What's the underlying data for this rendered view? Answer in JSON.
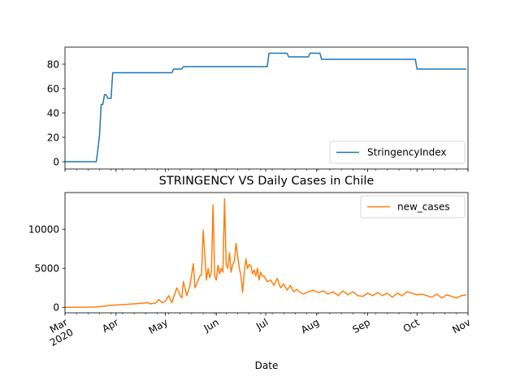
{
  "chart_data": [
    {
      "type": "line",
      "title": "",
      "xlabel": "",
      "ylabel": "",
      "ylim": [
        -6,
        94
      ],
      "yticks": [
        0,
        20,
        40,
        60,
        80
      ],
      "legend_position": "lower-right",
      "x_tick_labels_shown": false,
      "series": [
        {
          "name": "StringencyIndex",
          "color": "#1f77b4",
          "x": [
            "2020-03-01",
            "2020-03-20",
            "2020-03-21",
            "2020-03-22",
            "2020-03-23",
            "2020-03-24",
            "2020-03-25",
            "2020-03-26",
            "2020-03-27",
            "2020-03-28",
            "2020-03-29",
            "2020-03-30",
            "2020-03-31",
            "2020-04-01",
            "2020-05-05",
            "2020-05-06",
            "2020-05-11",
            "2020-05-12",
            "2020-07-02",
            "2020-07-03",
            "2020-07-14",
            "2020-07-15",
            "2020-07-27",
            "2020-07-28",
            "2020-08-03",
            "2020-08-04",
            "2020-09-30",
            "2020-10-01",
            "2020-10-31"
          ],
          "y": [
            0,
            0,
            10,
            22,
            47,
            47,
            55,
            55,
            52,
            52,
            52,
            73,
            73,
            73,
            73,
            76,
            76,
            78,
            78,
            89,
            89,
            86,
            86,
            89,
            89,
            84,
            84,
            76,
            76
          ]
        }
      ]
    },
    {
      "type": "line",
      "title": "STRINGENCY VS Daily Cases in Chile",
      "xlabel": "Date",
      "ylabel": "",
      "ylim": [
        -700,
        14700
      ],
      "yticks": [
        0,
        5000,
        10000
      ],
      "legend_position": "upper-right",
      "x_tick_labels": [
        "Mar\n2020",
        "Apr",
        "May",
        "Jun",
        "Jul",
        "Aug",
        "Sep",
        "Oct",
        "Nov"
      ],
      "series": [
        {
          "name": "new_cases",
          "color": "#ff7f0e",
          "x": [
            "2020-03-01",
            "2020-03-10",
            "2020-03-15",
            "2020-03-20",
            "2020-03-25",
            "2020-03-28",
            "2020-04-01",
            "2020-04-05",
            "2020-04-10",
            "2020-04-15",
            "2020-04-18",
            "2020-04-20",
            "2020-04-22",
            "2020-04-25",
            "2020-04-27",
            "2020-04-29",
            "2020-05-01",
            "2020-05-03",
            "2020-05-05",
            "2020-05-06",
            "2020-05-08",
            "2020-05-10",
            "2020-05-11",
            "2020-05-12",
            "2020-05-14",
            "2020-05-16",
            "2020-05-18",
            "2020-05-19",
            "2020-05-21",
            "2020-05-22",
            "2020-05-23",
            "2020-05-24",
            "2020-05-26",
            "2020-05-27",
            "2020-05-28",
            "2020-05-29",
            "2020-05-30",
            "2020-05-31",
            "2020-06-01",
            "2020-06-02",
            "2020-06-03",
            "2020-06-04",
            "2020-06-05",
            "2020-06-06",
            "2020-06-07",
            "2020-06-08",
            "2020-06-09",
            "2020-06-10",
            "2020-06-11",
            "2020-06-12",
            "2020-06-13",
            "2020-06-14",
            "2020-06-15",
            "2020-06-16",
            "2020-06-17",
            "2020-06-18",
            "2020-06-19",
            "2020-06-20",
            "2020-06-21",
            "2020-06-22",
            "2020-06-23",
            "2020-06-24",
            "2020-06-25",
            "2020-06-26",
            "2020-06-27",
            "2020-06-28",
            "2020-06-29",
            "2020-06-30",
            "2020-07-02",
            "2020-07-04",
            "2020-07-06",
            "2020-07-08",
            "2020-07-10",
            "2020-07-12",
            "2020-07-14",
            "2020-07-16",
            "2020-07-18",
            "2020-07-20",
            "2020-07-22",
            "2020-07-24",
            "2020-07-27",
            "2020-07-30",
            "2020-08-02",
            "2020-08-05",
            "2020-08-08",
            "2020-08-11",
            "2020-08-14",
            "2020-08-17",
            "2020-08-20",
            "2020-08-23",
            "2020-08-26",
            "2020-08-29",
            "2020-09-01",
            "2020-09-04",
            "2020-09-07",
            "2020-09-10",
            "2020-09-13",
            "2020-09-16",
            "2020-09-19",
            "2020-09-22",
            "2020-09-25",
            "2020-09-28",
            "2020-10-01",
            "2020-10-04",
            "2020-10-07",
            "2020-10-10",
            "2020-10-13",
            "2020-10-16",
            "2020-10-19",
            "2020-10-22",
            "2020-10-25",
            "2020-10-28",
            "2020-10-31"
          ],
          "y": [
            0,
            10,
            20,
            60,
            150,
            250,
            300,
            350,
            420,
            500,
            550,
            600,
            450,
            550,
            1000,
            600,
            800,
            1500,
            600,
            1300,
            2500,
            1500,
            1200,
            3300,
            1500,
            2800,
            5600,
            2500,
            3500,
            4000,
            4200,
            9900,
            3500,
            5000,
            3800,
            4500,
            13100,
            4000,
            3500,
            5400,
            4300,
            5000,
            4500,
            13900,
            5500,
            5000,
            7000,
            4500,
            5500,
            6000,
            8200,
            6500,
            5000,
            4000,
            1900,
            4500,
            6200,
            5000,
            5500,
            5300,
            4300,
            4800,
            4000,
            5000,
            3500,
            4500,
            4000,
            4000,
            3300,
            3500,
            2800,
            3700,
            2500,
            3000,
            2200,
            2800,
            2000,
            2300,
            1900,
            1700,
            2000,
            2200,
            1900,
            2100,
            1700,
            2000,
            1500,
            2100,
            1600,
            2000,
            1500,
            1400,
            1800,
            1500,
            1900,
            1500,
            1800,
            1300,
            1800,
            1500,
            2000,
            1800,
            1600,
            1700,
            1500,
            1300,
            1700,
            1200,
            1600,
            1400,
            1200,
            1500,
            1600
          ]
        }
      ]
    }
  ]
}
